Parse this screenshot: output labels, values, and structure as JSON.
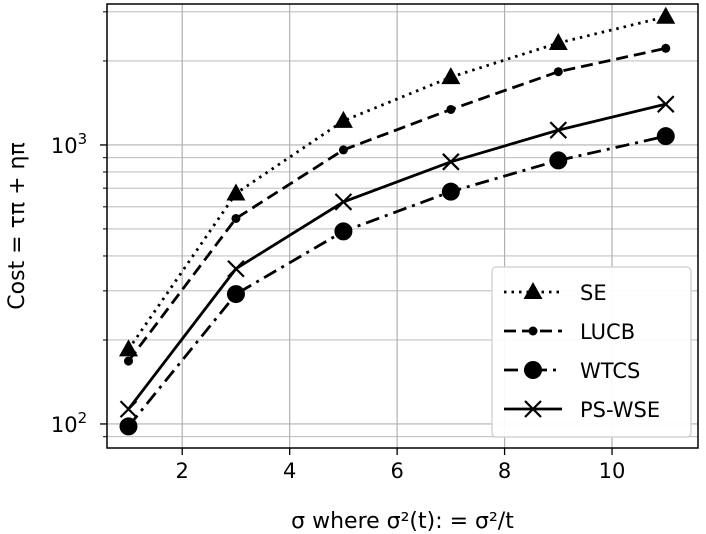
{
  "chart_data": {
    "type": "line",
    "title": "",
    "xlabel": "σ where σ²(t): = σ²/t",
    "ylabel": "Cost = τπ + ηπ",
    "xlim": [
      0.6,
      11.6
    ],
    "ylim": [
      82,
      3200
    ],
    "yscale": "log",
    "grid": true,
    "x_ticks": [
      "2",
      "4",
      "6",
      "8",
      "10"
    ],
    "y_tick_labels": [
      {
        "base": "10",
        "exp": "2",
        "value": 100
      },
      {
        "base": "10",
        "exp": "3",
        "value": 1000
      }
    ],
    "legend_position": "lower-right",
    "x": [
      1,
      3,
      5,
      7,
      9,
      11
    ],
    "series": [
      {
        "name": "SE",
        "values": [
          185,
          670,
          1220,
          1750,
          2320,
          2880
        ],
        "color": "#000000",
        "linestyle": "dotted",
        "marker": "triangle"
      },
      {
        "name": "LUCB",
        "values": [
          168,
          545,
          960,
          1340,
          1830,
          2220
        ],
        "color": "#000000",
        "linestyle": "dashed",
        "marker": "small-dot"
      },
      {
        "name": "WTCS",
        "values": [
          98,
          292,
          490,
          680,
          880,
          1075
        ],
        "color": "#000000",
        "linestyle": "dashdot",
        "marker": "circle"
      },
      {
        "name": "PS-WSE",
        "values": [
          113,
          360,
          625,
          870,
          1130,
          1400
        ],
        "color": "#000000",
        "linestyle": "solid",
        "marker": "x"
      }
    ]
  }
}
